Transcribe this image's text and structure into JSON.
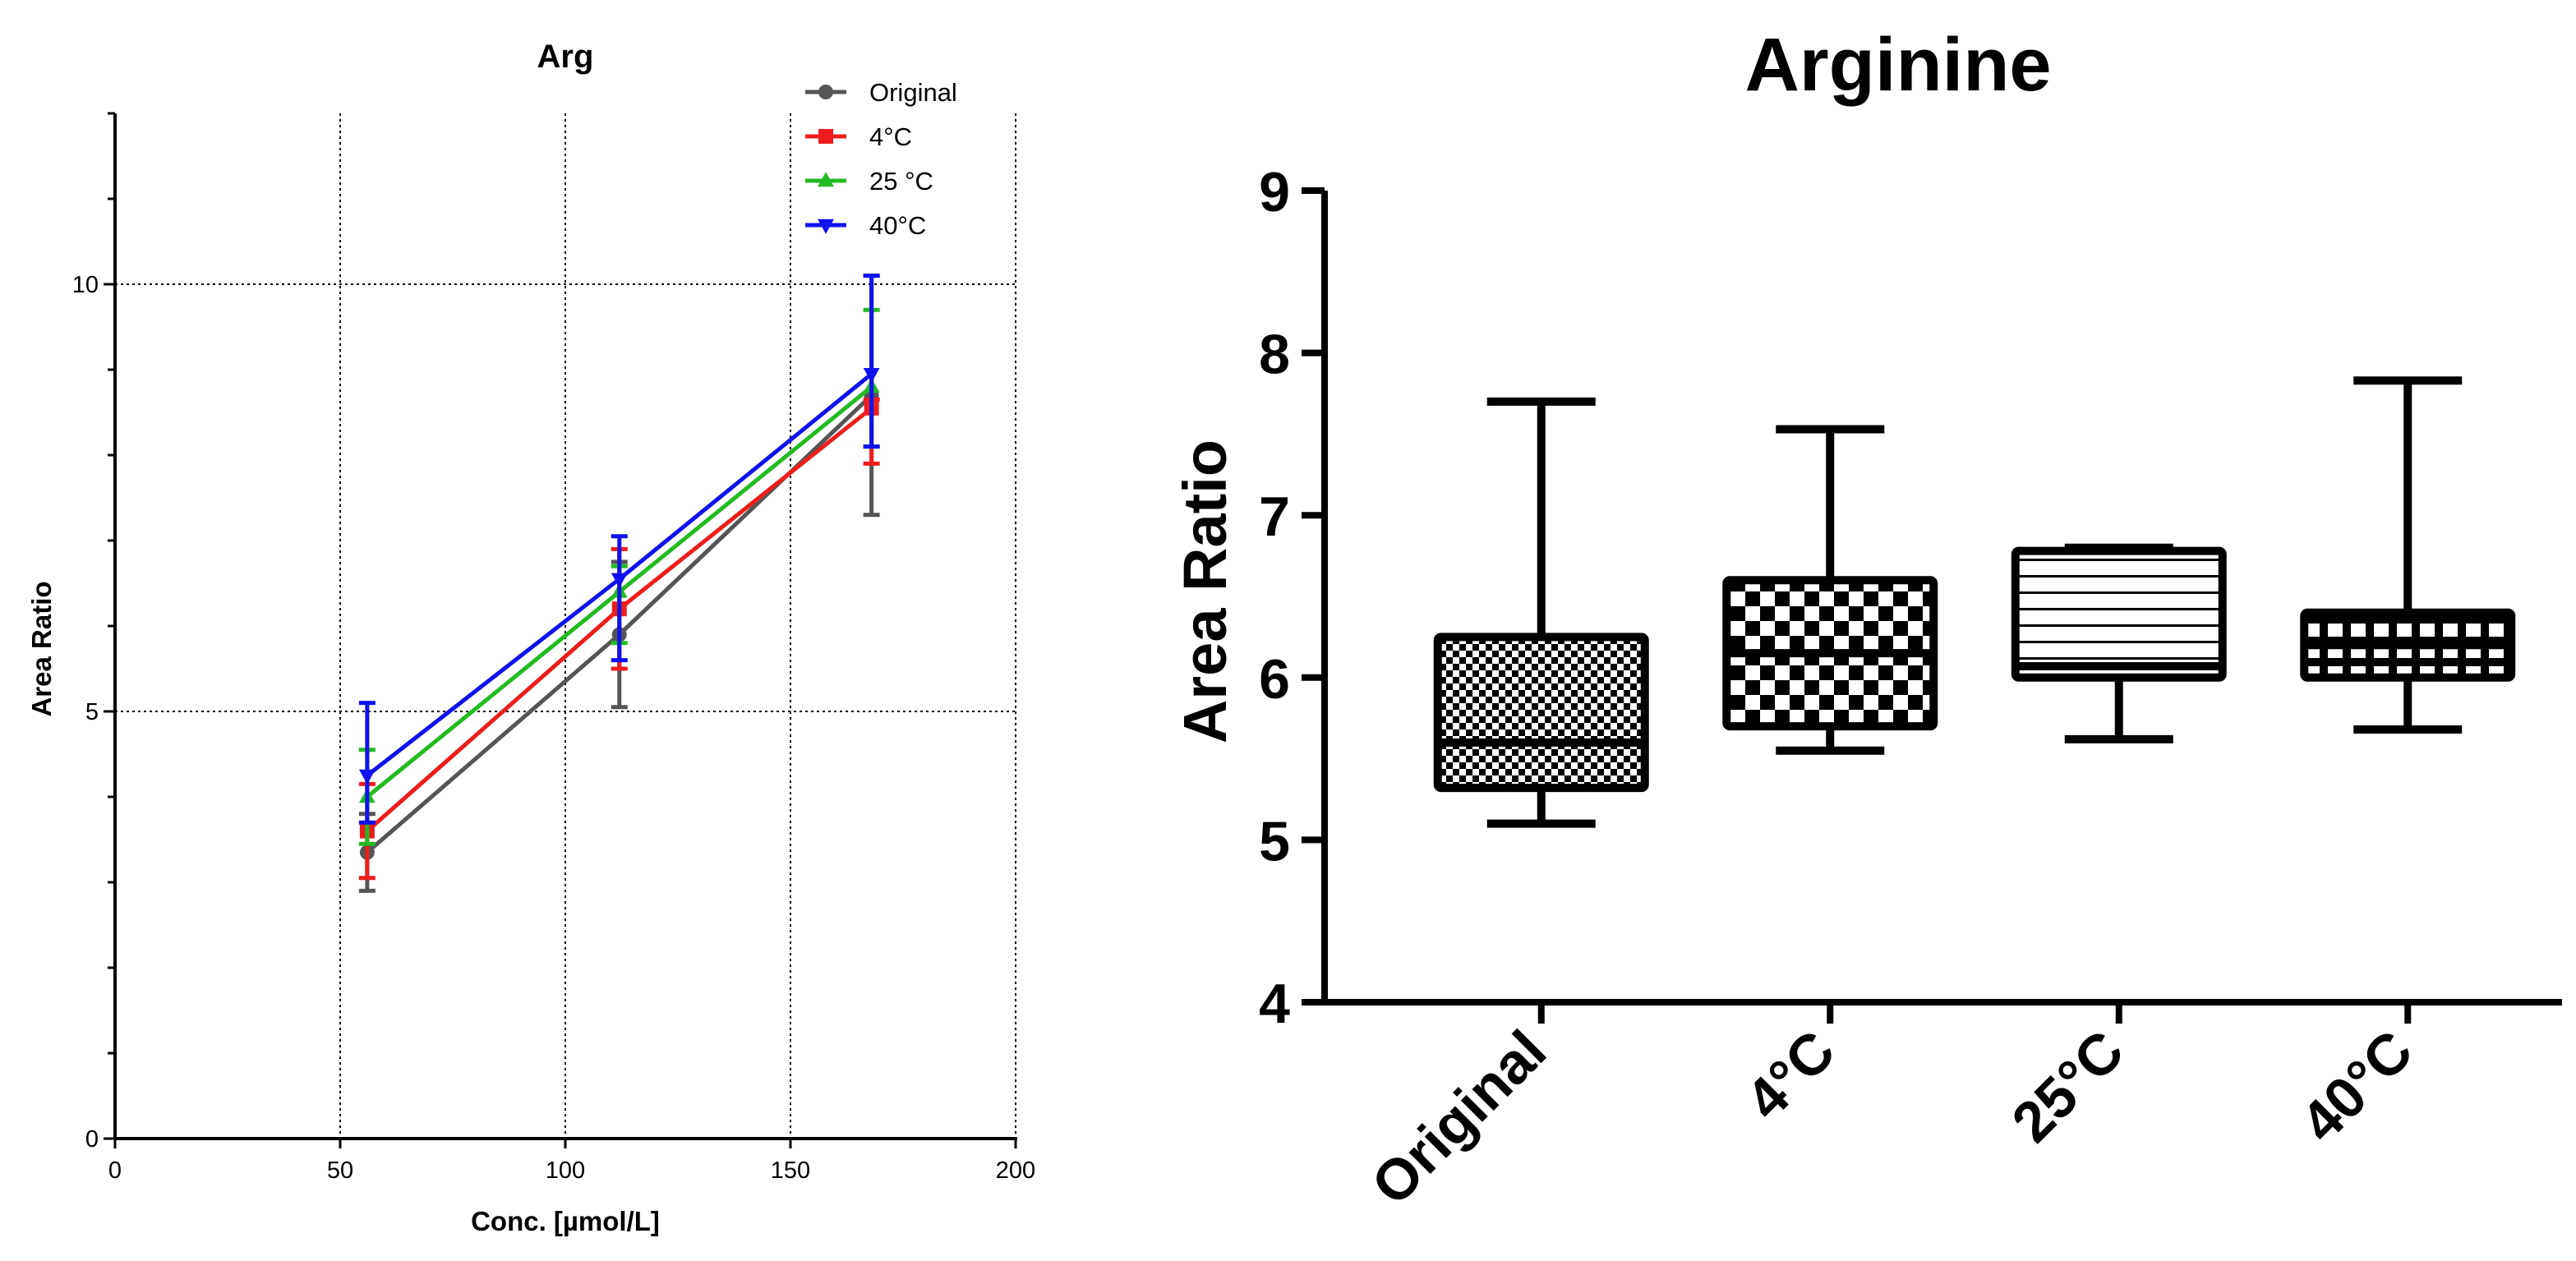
{
  "chart_data": [
    {
      "type": "line",
      "title": "Arg",
      "xlabel": "Conc. [µmol/L]",
      "ylabel": "Area Ratio",
      "xlim": [
        0,
        200
      ],
      "ylim": [
        0,
        12
      ],
      "xticks": [
        0,
        50,
        100,
        150,
        200
      ],
      "yticks": [
        0,
        5,
        10
      ],
      "yminor_step": 1,
      "grid": "dotted-at-major-ticks",
      "legend_position": "top-right",
      "x": [
        56,
        112,
        168
      ],
      "series": [
        {
          "name": "Original",
          "color": "#555555",
          "marker": "circle",
          "values": [
            3.35,
            5.9,
            8.7
          ],
          "err_low": [
            0.45,
            0.85,
            1.4
          ],
          "err_high": [
            0.45,
            0.85,
            1.4
          ]
        },
        {
          "name": "4°C",
          "color": "#ee1c1c",
          "marker": "square",
          "values": [
            3.6,
            6.2,
            8.55
          ],
          "err_low": [
            0.55,
            0.7,
            0.65
          ],
          "err_high": [
            0.55,
            0.7,
            0.1
          ]
        },
        {
          "name": "25 °C",
          "color": "#22bb22",
          "marker": "triangle-up",
          "values": [
            4.0,
            6.4,
            8.8
          ],
          "err_low": [
            0.55,
            0.6,
            0.7
          ],
          "err_high": [
            0.55,
            0.3,
            0.9
          ]
        },
        {
          "name": "40°C",
          "color": "#1111ee",
          "marker": "triangle-down",
          "values": [
            4.25,
            6.55,
            8.95
          ],
          "err_low": [
            0.55,
            0.95,
            0.85
          ],
          "err_high": [
            0.85,
            0.5,
            1.15
          ]
        }
      ]
    },
    {
      "type": "box",
      "title": "Arginine",
      "ylabel": "Area Ratio",
      "ylim": [
        4,
        9
      ],
      "yticks": [
        4,
        5,
        6,
        7,
        8,
        9
      ],
      "categories": [
        "Original",
        "4°C",
        "25°C",
        "40°C"
      ],
      "boxes": [
        {
          "min": 5.1,
          "q1": 5.32,
          "median": 5.6,
          "q3": 6.25,
          "max": 7.7,
          "pattern": "fine-check"
        },
        {
          "min": 5.55,
          "q1": 5.7,
          "median": 6.15,
          "q3": 6.6,
          "max": 7.53,
          "pattern": "check"
        },
        {
          "min": 5.62,
          "q1": 6.0,
          "median": 6.07,
          "q3": 6.78,
          "max": 6.8,
          "pattern": "h-lines"
        },
        {
          "min": 5.68,
          "q1": 6.0,
          "median": 6.2,
          "q3": 6.4,
          "max": 7.83,
          "pattern": "grid"
        }
      ]
    }
  ]
}
